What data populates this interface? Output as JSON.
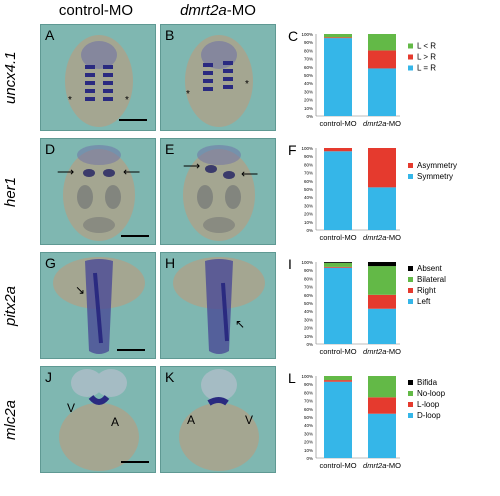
{
  "columns": {
    "col1": "control-MO",
    "col2_italic": "dmrt2a",
    "col2_suffix": "-MO"
  },
  "rows": [
    {
      "gene": "uncx4.1",
      "panels": [
        "A",
        "B"
      ],
      "chart_label": "C"
    },
    {
      "gene": "her1",
      "panels": [
        "D",
        "E"
      ],
      "chart_label": "F"
    },
    {
      "gene": "pitx2a",
      "panels": [
        "G",
        "H"
      ],
      "chart_label": "I"
    },
    {
      "gene": "mlc2a",
      "panels": [
        "J",
        "K"
      ],
      "chart_label": "L"
    }
  ],
  "annotations": {
    "V": "V",
    "A": "A"
  },
  "colors": {
    "blue": "#35b6e8",
    "red": "#e53a2e",
    "green": "#63b947",
    "black": "#000000",
    "gray": "#7a7a7a",
    "panel": "#7fb7b1",
    "embryo": "#a4a691",
    "stain": "#2a2a80"
  },
  "chart_data": [
    {
      "type": "bar",
      "stacked": true,
      "categories": [
        "control-MO",
        "dmrt2a-MO"
      ],
      "ylim": [
        0,
        100
      ],
      "yticks": [
        "0%",
        "10%",
        "20%",
        "30%",
        "40%",
        "50%",
        "60%",
        "70%",
        "80%",
        "90%",
        "100%"
      ],
      "series": [
        {
          "name": "L = R",
          "color": "#35b6e8",
          "values": [
            95,
            58
          ]
        },
        {
          "name": "L > R",
          "color": "#e53a2e",
          "values": [
            1,
            22
          ]
        },
        {
          "name": "L < R",
          "color": "#63b947",
          "values": [
            4,
            20
          ]
        }
      ],
      "legend_order": [
        "L < R",
        "L > R",
        "L = R"
      ]
    },
    {
      "type": "bar",
      "stacked": true,
      "categories": [
        "control-MO",
        "dmrt2a-MO"
      ],
      "ylim": [
        0,
        100
      ],
      "yticks": [
        "0%",
        "10%",
        "20%",
        "30%",
        "40%",
        "50%",
        "60%",
        "70%",
        "80%",
        "90%",
        "100%"
      ],
      "series": [
        {
          "name": "Symmetry",
          "color": "#35b6e8",
          "values": [
            96,
            52
          ]
        },
        {
          "name": "Asymmetry",
          "color": "#e53a2e",
          "values": [
            4,
            48
          ]
        }
      ],
      "legend_order": [
        "Asymmetry",
        "Symmetry"
      ]
    },
    {
      "type": "bar",
      "stacked": true,
      "categories": [
        "control-MO",
        "dmrt2a-MO"
      ],
      "ylim": [
        0,
        100
      ],
      "yticks": [
        "0%",
        "10%",
        "20%",
        "30%",
        "40%",
        "50%",
        "60%",
        "70%",
        "80%",
        "90%",
        "100%"
      ],
      "series": [
        {
          "name": "Left",
          "color": "#35b6e8",
          "values": [
            93,
            43
          ]
        },
        {
          "name": "Right",
          "color": "#e53a2e",
          "values": [
            1,
            17
          ]
        },
        {
          "name": "Bilateral",
          "color": "#63b947",
          "values": [
            5,
            35
          ]
        },
        {
          "name": "Absent",
          "color": "#000000",
          "values": [
            1,
            5
          ]
        }
      ],
      "legend_order": [
        "Absent",
        "Bilateral",
        "Right",
        "Left"
      ]
    },
    {
      "type": "bar",
      "stacked": true,
      "categories": [
        "control-MO",
        "dmrt2a-MO"
      ],
      "ylim": [
        0,
        100
      ],
      "yticks": [
        "0%",
        "10%",
        "20%",
        "30%",
        "40%",
        "50%",
        "60%",
        "70%",
        "80%",
        "90%",
        "100%"
      ],
      "series": [
        {
          "name": "D-loop",
          "color": "#35b6e8",
          "values": [
            93,
            54
          ]
        },
        {
          "name": "L-loop",
          "color": "#e53a2e",
          "values": [
            2,
            20
          ]
        },
        {
          "name": "No-loop",
          "color": "#63b947",
          "values": [
            5,
            26
          ]
        },
        {
          "name": "Bifida",
          "color": "#000000",
          "values": [
            0,
            0
          ]
        }
      ],
      "legend_order": [
        "Bifida",
        "No-loop",
        "L-loop",
        "D-loop"
      ]
    }
  ]
}
